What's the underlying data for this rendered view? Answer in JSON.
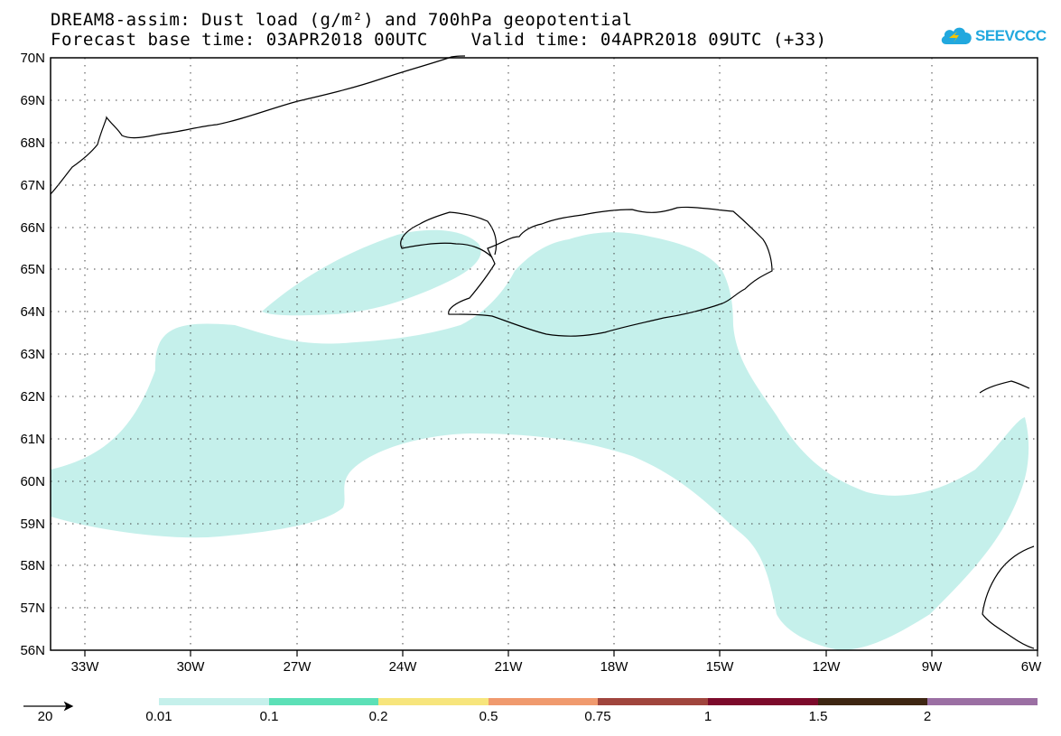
{
  "title": {
    "line1": "DREAM8-assim: Dust load (g/m²) and 700hPa geopotential",
    "line2": "Forecast base time: 03APR2018 00UTC    Valid time: 04APR2018 09UTC (+33)"
  },
  "logo": {
    "text": "SEEVCCC",
    "icon": "cloud-icon",
    "color": "#21a8de"
  },
  "map": {
    "lat_labels": [
      "70N",
      "69N",
      "68N",
      "67N",
      "66N",
      "65N",
      "64N",
      "63N",
      "62N",
      "61N",
      "60N",
      "59N",
      "58N",
      "57N",
      "56N"
    ],
    "lon_labels": [
      "33W",
      "30W",
      "27W",
      "24W",
      "21W",
      "18W",
      "15W",
      "12W",
      "9W",
      "6W"
    ],
    "lat_range": [
      56,
      70
    ],
    "lon_range": [
      -34,
      -6
    ],
    "dust_color": "#c5f0eb",
    "grid": "dotted"
  },
  "legend": {
    "vector_reference": "20",
    "labels": [
      "0.01",
      "0.1",
      "0.2",
      "0.5",
      "0.75",
      "1",
      "1.5",
      "2"
    ],
    "colors": [
      "#c5f0eb",
      "#5ce0b7",
      "#f7e57c",
      "#f09a6e",
      "#a0453d",
      "#7c0a2b",
      "#3e2612",
      "#9b6fa3"
    ]
  }
}
